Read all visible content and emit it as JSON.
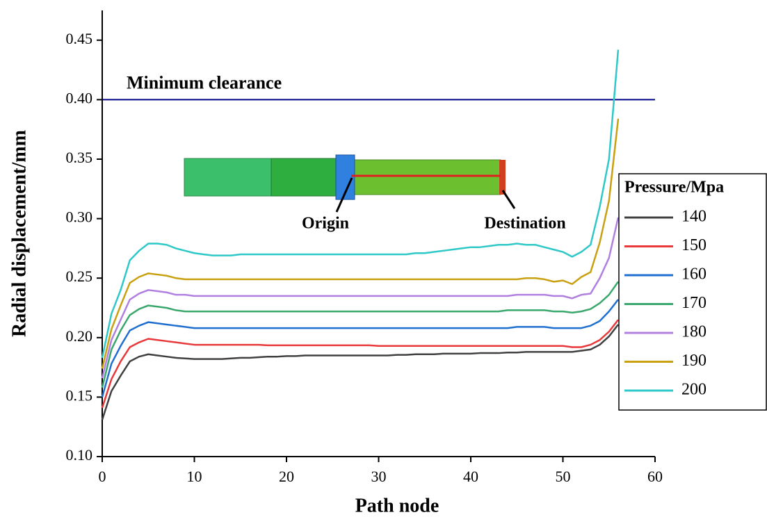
{
  "chart_data": {
    "type": "line",
    "x_label": "Path node",
    "y_label": "Radial displacement/mm",
    "legend_title": "Pressure/Mpa",
    "legend": "right",
    "xlim": [
      0,
      60
    ],
    "xticks": [
      0,
      10,
      20,
      30,
      40,
      50,
      60
    ],
    "ylim": [
      0.1,
      0.475
    ],
    "yticks": [
      {
        "value": 0.1,
        "label": "0.10"
      },
      0.15,
      {
        "value": 0.2,
        "label": "0.20"
      },
      0.25,
      {
        "value": 0.3,
        "label": "0.30"
      },
      0.35,
      {
        "value": 0.4,
        "label": "0.40"
      },
      0.45
    ],
    "reference_lines": [
      {
        "value": 0.4,
        "label": "Minimum clearance",
        "color": "#00008b"
      }
    ],
    "annotations": [
      "Origin",
      "Destination"
    ],
    "x": [
      0,
      1,
      2,
      3,
      4,
      5,
      6,
      7,
      8,
      9,
      10,
      11,
      12,
      13,
      14,
      15,
      16,
      17,
      18,
      19,
      20,
      21,
      22,
      23,
      24,
      25,
      26,
      27,
      28,
      29,
      30,
      31,
      32,
      33,
      34,
      35,
      36,
      37,
      38,
      39,
      40,
      41,
      42,
      43,
      44,
      45,
      46,
      47,
      48,
      49,
      50,
      51,
      52,
      53,
      54,
      55,
      56
    ],
    "series": [
      {
        "name": "140",
        "color": "#404040",
        "values": [
          0.131,
          0.155,
          0.168,
          0.18,
          0.184,
          0.186,
          0.185,
          0.184,
          0.183,
          0.1825,
          0.182,
          0.182,
          0.182,
          0.182,
          0.1825,
          0.183,
          0.183,
          0.1835,
          0.184,
          0.184,
          0.1845,
          0.1845,
          0.185,
          0.185,
          0.185,
          0.185,
          0.185,
          0.185,
          0.185,
          0.185,
          0.185,
          0.185,
          0.1855,
          0.1855,
          0.186,
          0.186,
          0.186,
          0.1865,
          0.1865,
          0.1865,
          0.1865,
          0.187,
          0.187,
          0.187,
          0.1875,
          0.1875,
          0.188,
          0.188,
          0.188,
          0.188,
          0.188,
          0.188,
          0.189,
          0.19,
          0.194,
          0.201,
          0.211
        ]
      },
      {
        "name": "150",
        "color": "#e8383a",
        "values": [
          0.141,
          0.165,
          0.18,
          0.192,
          0.196,
          0.199,
          0.198,
          0.197,
          0.196,
          0.195,
          0.194,
          0.194,
          0.194,
          0.194,
          0.194,
          0.194,
          0.194,
          0.194,
          0.1935,
          0.1935,
          0.1935,
          0.1935,
          0.1935,
          0.1935,
          0.1935,
          0.1935,
          0.1935,
          0.1935,
          0.1935,
          0.1935,
          0.193,
          0.193,
          0.193,
          0.193,
          0.193,
          0.193,
          0.193,
          0.193,
          0.193,
          0.193,
          0.193,
          0.193,
          0.193,
          0.193,
          0.193,
          0.193,
          0.193,
          0.193,
          0.193,
          0.193,
          0.193,
          0.192,
          0.192,
          0.194,
          0.198,
          0.205,
          0.215
        ]
      },
      {
        "name": "160",
        "color": "#1f6fd1",
        "values": [
          0.15,
          0.178,
          0.193,
          0.206,
          0.21,
          0.213,
          0.212,
          0.211,
          0.21,
          0.209,
          0.208,
          0.208,
          0.208,
          0.208,
          0.208,
          0.208,
          0.208,
          0.208,
          0.208,
          0.208,
          0.208,
          0.208,
          0.208,
          0.208,
          0.208,
          0.208,
          0.208,
          0.208,
          0.208,
          0.208,
          0.208,
          0.208,
          0.208,
          0.208,
          0.208,
          0.208,
          0.208,
          0.208,
          0.208,
          0.208,
          0.208,
          0.208,
          0.208,
          0.208,
          0.208,
          0.209,
          0.209,
          0.209,
          0.209,
          0.208,
          0.208,
          0.208,
          0.208,
          0.21,
          0.214,
          0.222,
          0.232
        ]
      },
      {
        "name": "170",
        "color": "#3aa76d",
        "values": [
          0.158,
          0.19,
          0.206,
          0.219,
          0.224,
          0.227,
          0.226,
          0.225,
          0.223,
          0.222,
          0.222,
          0.222,
          0.222,
          0.222,
          0.222,
          0.222,
          0.222,
          0.222,
          0.222,
          0.222,
          0.222,
          0.222,
          0.222,
          0.222,
          0.222,
          0.222,
          0.222,
          0.222,
          0.222,
          0.222,
          0.222,
          0.222,
          0.222,
          0.222,
          0.222,
          0.222,
          0.222,
          0.222,
          0.222,
          0.222,
          0.222,
          0.222,
          0.222,
          0.222,
          0.223,
          0.223,
          0.223,
          0.223,
          0.223,
          0.222,
          0.222,
          0.221,
          0.222,
          0.224,
          0.229,
          0.236,
          0.247
        ]
      },
      {
        "name": "180",
        "color": "#b07fe0",
        "values": [
          0.166,
          0.198,
          0.215,
          0.232,
          0.237,
          0.24,
          0.239,
          0.238,
          0.236,
          0.236,
          0.235,
          0.235,
          0.235,
          0.235,
          0.235,
          0.235,
          0.235,
          0.235,
          0.235,
          0.235,
          0.235,
          0.235,
          0.235,
          0.235,
          0.235,
          0.235,
          0.235,
          0.235,
          0.235,
          0.235,
          0.235,
          0.235,
          0.235,
          0.235,
          0.235,
          0.235,
          0.235,
          0.235,
          0.235,
          0.235,
          0.235,
          0.235,
          0.235,
          0.235,
          0.235,
          0.236,
          0.236,
          0.236,
          0.236,
          0.235,
          0.235,
          0.233,
          0.236,
          0.237,
          0.25,
          0.267,
          0.301
        ]
      },
      {
        "name": "190",
        "color": "#c8a010",
        "values": [
          0.174,
          0.207,
          0.227,
          0.246,
          0.251,
          0.254,
          0.253,
          0.252,
          0.25,
          0.249,
          0.249,
          0.249,
          0.249,
          0.249,
          0.249,
          0.249,
          0.249,
          0.249,
          0.249,
          0.249,
          0.249,
          0.249,
          0.249,
          0.249,
          0.249,
          0.249,
          0.249,
          0.249,
          0.249,
          0.249,
          0.249,
          0.249,
          0.249,
          0.249,
          0.249,
          0.249,
          0.249,
          0.249,
          0.249,
          0.249,
          0.249,
          0.249,
          0.249,
          0.249,
          0.249,
          0.249,
          0.25,
          0.25,
          0.249,
          0.247,
          0.248,
          0.245,
          0.251,
          0.255,
          0.28,
          0.315,
          0.384
        ]
      },
      {
        "name": "200",
        "color": "#2ec8c8",
        "values": [
          0.183,
          0.22,
          0.24,
          0.265,
          0.273,
          0.279,
          0.279,
          0.278,
          0.275,
          0.273,
          0.271,
          0.27,
          0.269,
          0.269,
          0.269,
          0.27,
          0.27,
          0.27,
          0.27,
          0.27,
          0.27,
          0.27,
          0.27,
          0.27,
          0.27,
          0.27,
          0.27,
          0.27,
          0.27,
          0.27,
          0.27,
          0.27,
          0.27,
          0.27,
          0.271,
          0.271,
          0.272,
          0.273,
          0.274,
          0.275,
          0.276,
          0.276,
          0.277,
          0.278,
          0.278,
          0.279,
          0.278,
          0.278,
          0.276,
          0.274,
          0.272,
          0.268,
          0.272,
          0.278,
          0.31,
          0.35,
          0.442
        ]
      }
    ]
  }
}
